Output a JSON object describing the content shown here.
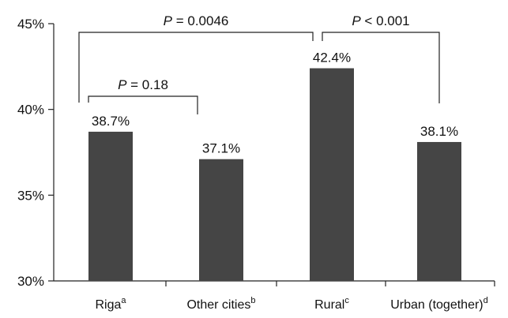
{
  "chart_data": {
    "type": "bar",
    "categories": [
      {
        "name": "Riga",
        "superscript": "a"
      },
      {
        "name": "Other cities",
        "superscript": "b"
      },
      {
        "name": "Rural",
        "superscript": "c"
      },
      {
        "name": "Urban (together)",
        "superscript": "d"
      }
    ],
    "values": [
      38.7,
      37.1,
      42.4,
      38.1
    ],
    "data_labels": [
      "38.7%",
      "37.1%",
      "42.4%",
      "38.1%"
    ],
    "ylim": [
      30,
      45
    ],
    "yticks": [
      30,
      35,
      40,
      45
    ],
    "ytick_labels": [
      "30%",
      "35%",
      "40%",
      "45%"
    ],
    "bar_color": "#454545",
    "title": "",
    "xlabel": "",
    "ylabel": "",
    "comparisons": [
      {
        "from": 0,
        "to": 2,
        "letter": "P",
        "relation": "=",
        "value": "0.0046"
      },
      {
        "from": 0,
        "to": 1,
        "letter": "P",
        "relation": "=",
        "value": "0.18"
      },
      {
        "from": 2,
        "to": 3,
        "letter": "P",
        "relation": "<",
        "value": "0.001"
      }
    ]
  }
}
